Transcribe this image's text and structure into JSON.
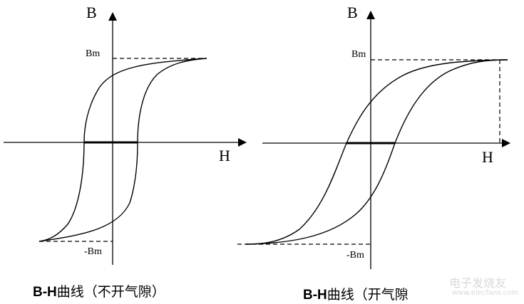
{
  "left_diagram": {
    "axis_y_label": "B",
    "axis_x_label": "H",
    "bm_label": "Bm",
    "neg_bm_label": "-Bm",
    "caption_prefix": "B-H",
    "caption_suffix": "曲线（不开气隙）"
  },
  "right_diagram": {
    "axis_y_label": "B",
    "axis_x_label": "H",
    "bm_label": "Bm",
    "neg_bm_label": "-Bm",
    "caption_prefix": "B-H",
    "caption_suffix": "曲线（开气隙"
  },
  "watermark": {
    "text": "电子发烧友",
    "url": "www.elecfans.com",
    "color": "#d8d8d8"
  }
}
